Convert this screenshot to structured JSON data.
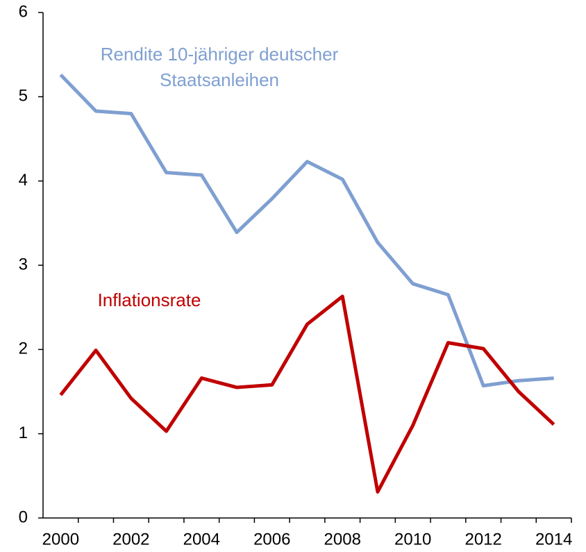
{
  "chart_data": {
    "type": "line",
    "categories": [
      "2000",
      null,
      "2002",
      null,
      "2004",
      null,
      "2006",
      null,
      "2008",
      null,
      "2010",
      null,
      "2012",
      null,
      "2014"
    ],
    "series": [
      {
        "name": "Rendite 10-jähriger deutscher Staatsanleihen",
        "color": "#7f9fd1",
        "values": [
          5.26,
          4.83,
          4.8,
          4.1,
          4.07,
          3.39,
          3.79,
          4.23,
          4.02,
          3.27,
          2.78,
          2.65,
          1.57,
          1.63,
          1.66
        ]
      },
      {
        "name": "Inflationsrate",
        "color": "#c00000",
        "values": [
          1.46,
          1.99,
          1.42,
          1.03,
          1.66,
          1.55,
          1.58,
          2.3,
          2.63,
          0.31,
          1.1,
          2.08,
          2.01,
          1.5,
          1.11
        ]
      }
    ],
    "ylim": [
      0,
      6
    ],
    "yticks": [
      0,
      1,
      2,
      3,
      4,
      5,
      6
    ],
    "grid": false
  }
}
